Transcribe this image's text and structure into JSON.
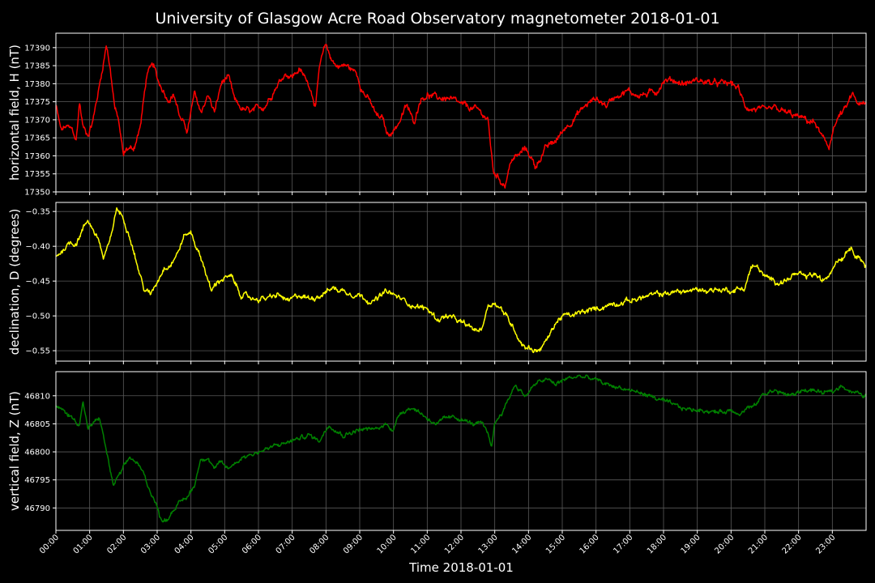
{
  "chart_data": {
    "type": "line",
    "title": "University of Glasgow Acre Road Observatory magnetometer 2018-01-01",
    "xlabel": "Time 2018-01-01",
    "x_range_hours": [
      0,
      24
    ],
    "x_ticks": [
      "00:00",
      "01:00",
      "02:00",
      "03:00",
      "04:00",
      "05:00",
      "06:00",
      "07:00",
      "08:00",
      "09:00",
      "10:00",
      "11:00",
      "12:00",
      "13:00",
      "14:00",
      "15:00",
      "16:00",
      "17:00",
      "18:00",
      "19:00",
      "20:00",
      "21:00",
      "22:00",
      "23:00"
    ],
    "grid": true,
    "background": "#000000",
    "panels": [
      {
        "ylabel": "horizontal field, H (nT)",
        "ylim": [
          17350,
          17394
        ],
        "yticks": [
          17350,
          17355,
          17360,
          17365,
          17370,
          17375,
          17380,
          17385,
          17390
        ],
        "tick_labels": [
          "17350",
          "17355",
          "17360",
          "17365",
          "17370",
          "17375",
          "17380",
          "17385",
          "17390"
        ],
        "color": "#ff0000",
        "noise": 0.8,
        "series": {
          "name": "H",
          "x_hours": [
            0,
            0.15,
            0.3,
            0.5,
            0.6,
            0.7,
            0.8,
            0.95,
            1.1,
            1.3,
            1.5,
            1.6,
            1.75,
            1.85,
            2.0,
            2.1,
            2.3,
            2.5,
            2.7,
            2.8,
            2.9,
            3.0,
            3.2,
            3.3,
            3.5,
            3.7,
            3.9,
            4.1,
            4.3,
            4.5,
            4.7,
            4.9,
            5.1,
            5.3,
            5.5,
            5.8,
            6.2,
            6.5,
            6.8,
            7.0,
            7.2,
            7.5,
            7.7,
            7.8,
            8.0,
            8.1,
            8.3,
            8.6,
            8.9,
            9.1,
            9.3,
            9.5,
            9.7,
            9.8,
            10.0,
            10.2,
            10.4,
            10.6,
            10.8,
            11.0,
            11.3,
            11.6,
            12.0,
            12.4,
            12.6,
            12.8,
            12.95,
            13.1,
            13.3,
            13.5,
            13.7,
            13.9,
            14.0,
            14.2,
            14.5,
            14.8,
            15.1,
            15.4,
            15.7,
            16.0,
            16.3,
            16.6,
            16.9,
            17.2,
            17.5,
            17.8,
            18.0,
            18.3,
            18.6,
            19.0,
            19.5,
            20.0,
            20.2,
            20.4,
            20.6,
            20.8,
            21.0,
            21.3,
            21.6,
            21.9,
            22.2,
            22.5,
            22.75,
            22.9,
            23.0,
            23.2,
            23.4,
            23.6,
            23.8,
            24.0
          ],
          "values": [
            17374,
            17367,
            17368,
            17367,
            17364,
            17375,
            17368,
            17366,
            17370,
            17380,
            17391,
            17385,
            17373,
            17370,
            17360,
            17362,
            17362,
            17368,
            17383,
            17384,
            17385,
            17381,
            17378,
            17376,
            17377,
            17370,
            17367,
            17377,
            17372,
            17377,
            17372,
            17380,
            17382,
            17375,
            17373,
            17372,
            17374,
            17379,
            17383,
            17382,
            17384,
            17380,
            17374,
            17384,
            17391,
            17388,
            17385,
            17385,
            17383,
            17378,
            17375,
            17371,
            17370,
            17366,
            17367,
            17370,
            17374,
            17369,
            17376,
            17377,
            17376,
            17376,
            17374,
            17373,
            17372,
            17370,
            17356,
            17354,
            17352,
            17359,
            17360,
            17362,
            17361,
            17357,
            17362,
            17364,
            17368,
            17371,
            17374,
            17376,
            17374,
            17377,
            17378,
            17377,
            17377,
            17378,
            17381,
            17381,
            17380,
            17381,
            17380,
            17380,
            17379,
            17374,
            17373,
            17373,
            17372,
            17373,
            17372,
            17371,
            17370,
            17369,
            17364,
            17362,
            17367,
            17371,
            17373,
            17377,
            17374,
            17374
          ]
        }
      },
      {
        "ylabel": "declination, D (degrees)",
        "ylim": [
          -0.565,
          -0.337
        ],
        "yticks": [
          -0.55,
          -0.5,
          -0.45,
          -0.4,
          -0.35
        ],
        "tick_labels": [
          "−0.55",
          "−0.50",
          "−0.45",
          "−0.40",
          "−0.35"
        ],
        "color": "#ffff00",
        "noise": 0.0035,
        "series": {
          "name": "D",
          "x_hours": [
            0,
            0.2,
            0.4,
            0.6,
            0.8,
            0.95,
            1.1,
            1.3,
            1.4,
            1.6,
            1.8,
            2.0,
            2.2,
            2.4,
            2.6,
            2.8,
            3.0,
            3.2,
            3.4,
            3.6,
            3.8,
            4.0,
            4.2,
            4.4,
            4.6,
            4.8,
            5.0,
            5.2,
            5.5,
            5.8,
            6.0,
            6.3,
            6.6,
            6.9,
            7.2,
            7.5,
            7.8,
            8.2,
            8.6,
            9.0,
            9.4,
            9.8,
            10.2,
            10.6,
            11.0,
            11.3,
            11.6,
            12.0,
            12.4,
            12.6,
            12.8,
            13.0,
            13.2,
            13.4,
            13.6,
            13.8,
            14.0,
            14.2,
            14.4,
            14.6,
            14.8,
            15.0,
            15.3,
            15.6,
            16.0,
            16.5,
            17.0,
            17.5,
            18.0,
            18.5,
            19.0,
            19.5,
            20.0,
            20.4,
            20.6,
            20.8,
            21.0,
            21.3,
            21.6,
            21.9,
            22.2,
            22.5,
            22.7,
            22.9,
            23.1,
            23.3,
            23.5,
            23.7,
            23.9,
            24.0
          ],
          "values": [
            -0.415,
            -0.405,
            -0.395,
            -0.395,
            -0.375,
            -0.362,
            -0.375,
            -0.395,
            -0.418,
            -0.395,
            -0.345,
            -0.36,
            -0.385,
            -0.425,
            -0.46,
            -0.47,
            -0.45,
            -0.43,
            -0.425,
            -0.41,
            -0.385,
            -0.38,
            -0.405,
            -0.43,
            -0.465,
            -0.45,
            -0.445,
            -0.445,
            -0.47,
            -0.475,
            -0.475,
            -0.475,
            -0.47,
            -0.48,
            -0.47,
            -0.475,
            -0.47,
            -0.46,
            -0.465,
            -0.47,
            -0.48,
            -0.465,
            -0.475,
            -0.485,
            -0.49,
            -0.505,
            -0.5,
            -0.51,
            -0.52,
            -0.52,
            -0.485,
            -0.48,
            -0.49,
            -0.505,
            -0.52,
            -0.54,
            -0.545,
            -0.55,
            -0.545,
            -0.53,
            -0.51,
            -0.5,
            -0.5,
            -0.495,
            -0.49,
            -0.482,
            -0.478,
            -0.472,
            -0.468,
            -0.465,
            -0.463,
            -0.462,
            -0.463,
            -0.46,
            -0.43,
            -0.43,
            -0.445,
            -0.45,
            -0.45,
            -0.44,
            -0.445,
            -0.44,
            -0.452,
            -0.44,
            -0.42,
            -0.415,
            -0.4,
            -0.41,
            -0.42,
            -0.43
          ]
        }
      },
      {
        "ylabel": "vertical field, Z (nT)",
        "ylim": [
          46786,
          46814.3
        ],
        "yticks": [
          46790,
          46795,
          46800,
          46805,
          46810
        ],
        "tick_labels": [
          "46790",
          "46795",
          "46800",
          "46805",
          "46810"
        ],
        "color": "#008000",
        "noise": 0.35,
        "series": {
          "name": "Z",
          "x_hours": [
            0,
            0.3,
            0.5,
            0.7,
            0.8,
            0.95,
            1.1,
            1.3,
            1.5,
            1.7,
            1.8,
            2.0,
            2.2,
            2.4,
            2.6,
            2.8,
            2.95,
            3.1,
            3.3,
            3.5,
            3.7,
            3.9,
            4.1,
            4.3,
            4.5,
            4.7,
            4.9,
            5.1,
            5.3,
            5.5,
            6.0,
            6.5,
            7.0,
            7.5,
            7.8,
            8.1,
            8.5,
            9.0,
            9.5,
            9.8,
            10.0,
            10.2,
            10.5,
            10.8,
            11.0,
            11.3,
            11.6,
            12.0,
            12.3,
            12.6,
            12.8,
            12.9,
            13.0,
            13.1,
            13.3,
            13.6,
            13.9,
            14.2,
            14.5,
            14.8,
            15.1,
            15.5,
            15.9,
            16.3,
            16.7,
            17.0,
            17.3,
            17.6,
            18.0,
            18.4,
            18.8,
            19.2,
            19.6,
            20.0,
            20.3,
            20.5,
            20.7,
            20.9,
            21.2,
            21.5,
            21.8,
            22.1,
            22.4,
            22.7,
            22.9,
            23.1,
            23.3,
            23.5,
            23.7,
            23.9,
            24.0
          ],
          "values": [
            46808,
            46807,
            46806,
            46805,
            46809,
            46804,
            46805,
            46806,
            46800,
            46794,
            46795,
            46797,
            46799,
            46798,
            46796,
            46793,
            46791,
            46788,
            46788,
            46790,
            46791,
            46792,
            46794,
            46799,
            46799,
            46797,
            46798,
            46797,
            46798,
            46799,
            46800,
            46801,
            46802,
            46803,
            46802,
            46805,
            46803,
            46804,
            46804,
            46805,
            46804,
            46807,
            46808,
            46807,
            46806,
            46805,
            46806,
            46806,
            46805,
            46805,
            46803,
            46801,
            46805,
            46806,
            46808,
            46812,
            46810,
            46812,
            46813,
            46812,
            46813,
            46813.5,
            46813,
            46812,
            46811.5,
            46811,
            46810.5,
            46810,
            46809,
            46808,
            46807.5,
            46807.5,
            46807,
            46807.5,
            46807,
            46808,
            46808,
            46810,
            46811,
            46810.5,
            46810,
            46811,
            46811,
            46810.5,
            46810.5,
            46811,
            46812,
            46811,
            46810.5,
            46810,
            46810
          ]
        }
      }
    ]
  }
}
